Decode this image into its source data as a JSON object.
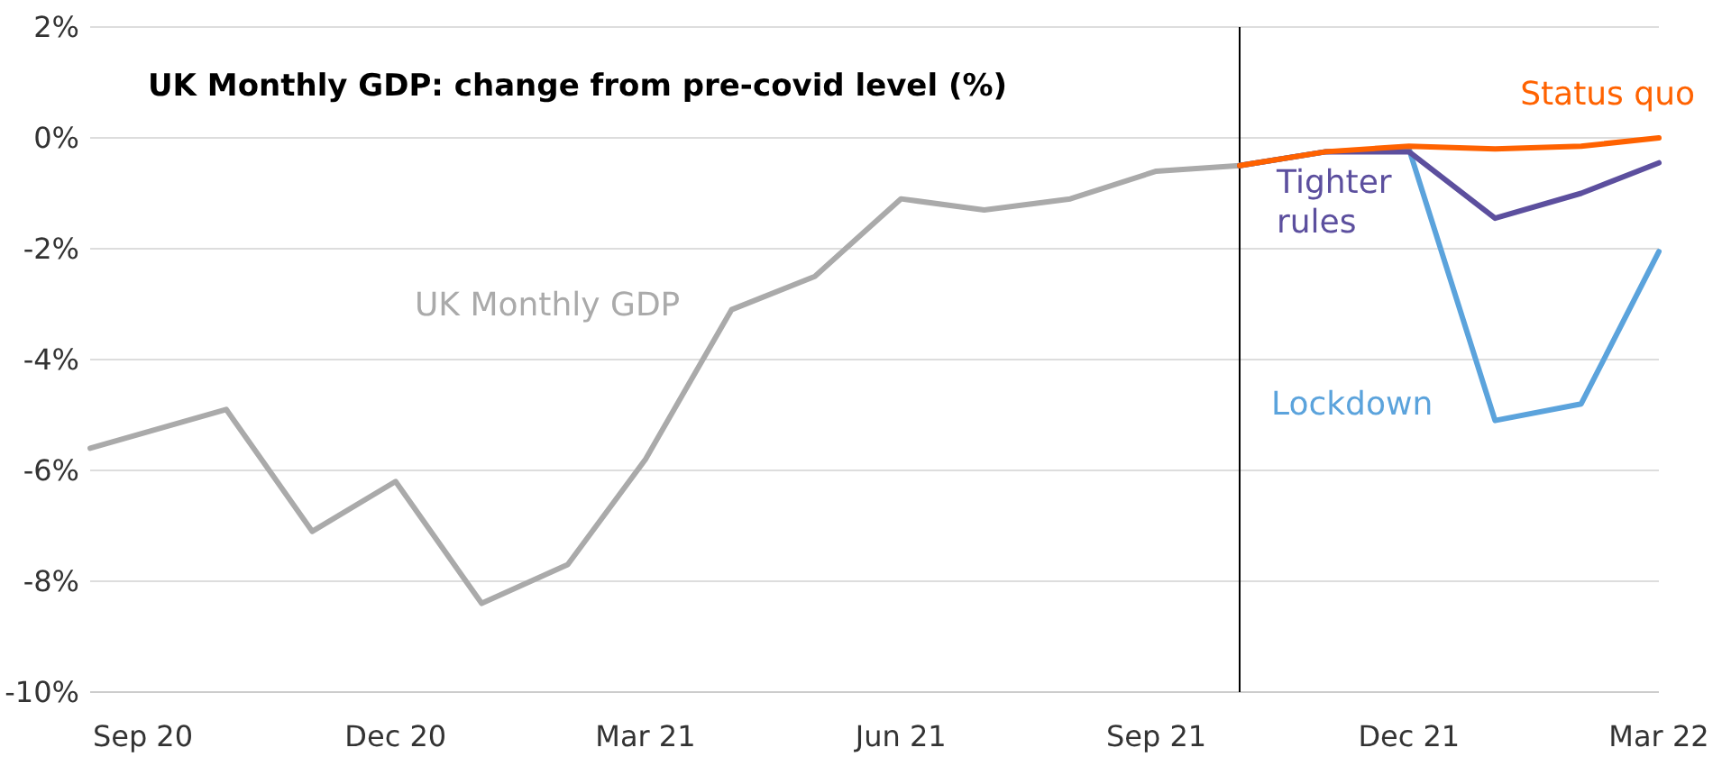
{
  "chart_data": {
    "type": "line",
    "title": "UK Monthly GDP: change from pre-covid level (%)",
    "xlim": [
      "2020-08-13",
      "2022-03-01"
    ],
    "xticks": [
      {
        "value": "2020-09",
        "label": "Sep 20"
      },
      {
        "value": "2020-12",
        "label": "Dec 20"
      },
      {
        "value": "2021-03",
        "label": "Mar 21"
      },
      {
        "value": "2021-06",
        "label": "Jun 21"
      },
      {
        "value": "2021-09",
        "label": "Sep 21"
      },
      {
        "value": "2021-12",
        "label": "Dec 21"
      },
      {
        "value": "2022-03",
        "label": "Mar 22"
      }
    ],
    "ylim": [
      -10,
      2
    ],
    "yticks": [
      {
        "value": -10,
        "label": "-10%"
      },
      {
        "value": -8,
        "label": "-8%"
      },
      {
        "value": -6,
        "label": "-6%"
      },
      {
        "value": -4,
        "label": "-4%"
      },
      {
        "value": -2,
        "label": "-2%"
      },
      {
        "value": 0,
        "label": "0%"
      },
      {
        "value": 2,
        "label": "2%"
      }
    ],
    "grid": "y",
    "marker": "none",
    "line_style": "solid",
    "ref_lines": [
      {
        "axis": "x",
        "value": "2021-10",
        "label": null,
        "color": "#000000"
      }
    ],
    "series": [
      {
        "name": "UK Monthly GDP",
        "color": "#aaaaaa",
        "x": [
          "2020-08-13",
          "2020-10",
          "2020-11",
          "2020-12",
          "2021-01",
          "2021-02",
          "2021-03",
          "2021-04",
          "2021-05",
          "2021-06",
          "2021-07",
          "2021-08",
          "2021-09",
          "2021-10"
        ],
        "values": [
          -5.6,
          -4.9,
          -7.1,
          -6.2,
          -8.4,
          -7.7,
          -5.8,
          -3.1,
          -2.5,
          -1.1,
          -1.3,
          -1.1,
          -0.6,
          -0.5
        ]
      },
      {
        "name": "Lockdown",
        "color": "#5ba3dc",
        "x": [
          "2021-10",
          "2021-11",
          "2021-12",
          "2022-01",
          "2022-02",
          "2022-03"
        ],
        "values": [
          -0.5,
          -0.25,
          -0.2,
          -5.1,
          -4.8,
          -2.05
        ]
      },
      {
        "name": "Tighter rules",
        "color": "#5c4f9e",
        "x": [
          "2021-10",
          "2021-11",
          "2021-12",
          "2022-01",
          "2022-02",
          "2022-03"
        ],
        "values": [
          -0.5,
          -0.25,
          -0.25,
          -1.45,
          -1.0,
          -0.45
        ]
      },
      {
        "name": "Status quo",
        "color": "#ff6200",
        "x": [
          "2021-10",
          "2021-11",
          "2021-12",
          "2022-01",
          "2022-02",
          "2022-03"
        ],
        "values": [
          -0.5,
          -0.25,
          -0.15,
          -0.2,
          -0.15,
          0
        ]
      }
    ]
  }
}
